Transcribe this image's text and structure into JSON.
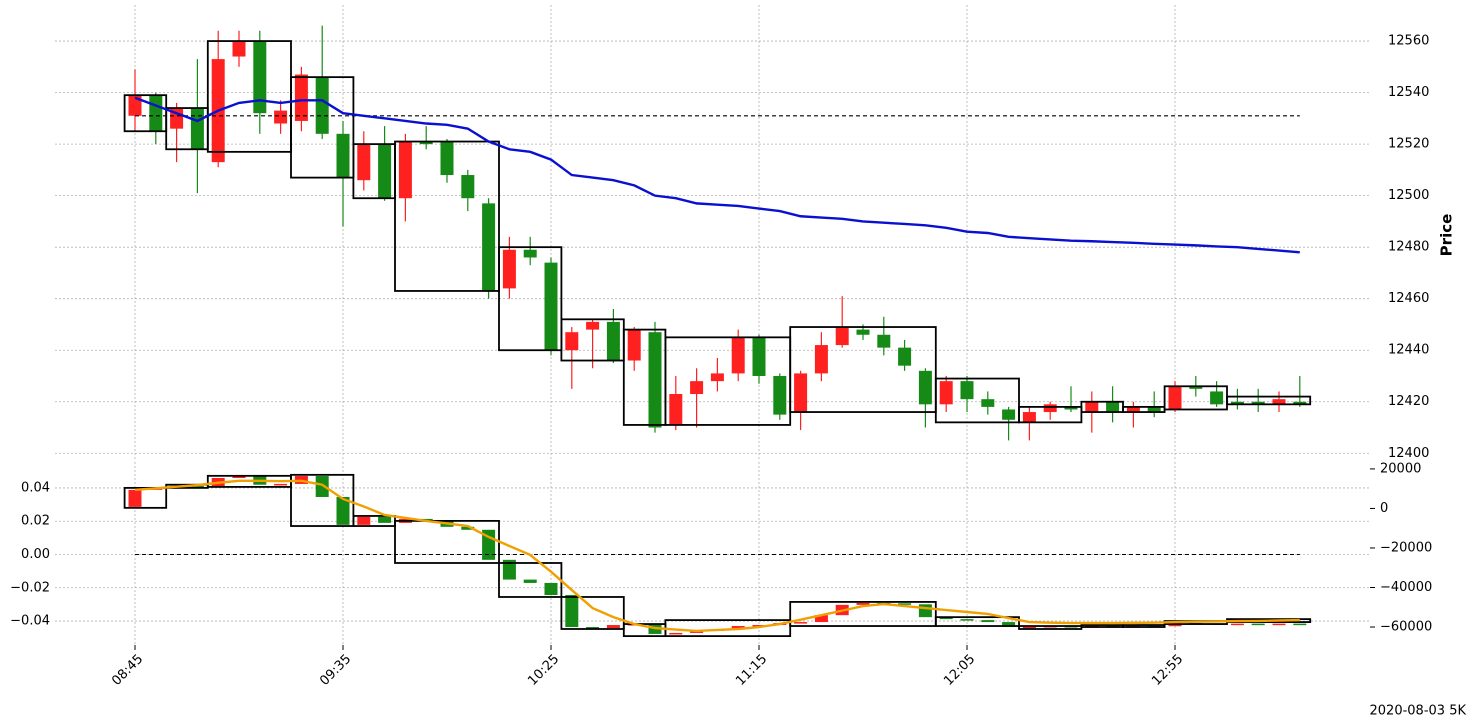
{
  "chart_data": [
    {
      "type": "candlestick",
      "ylabel": "Price",
      "grid": true,
      "ylim": [
        12397,
        12574
      ],
      "yticks": [
        12400,
        12420,
        12440,
        12460,
        12480,
        12500,
        12520,
        12540,
        12560
      ],
      "up_color": "#ff2020",
      "down_color": "#168a16",
      "open": [
        12531,
        12539,
        12526,
        12534,
        12513,
        12554,
        12560,
        12528,
        12529,
        12546,
        12524,
        12506,
        12520,
        12499,
        12521,
        12521,
        12508,
        12497,
        12464,
        12479,
        12474,
        12440,
        12448,
        12451,
        12436,
        12447,
        12411,
        12423,
        12428,
        12431,
        12445,
        12430,
        12416,
        12431,
        12442,
        12448,
        12446,
        12441,
        12432,
        12419,
        12428,
        12421,
        12417,
        12412,
        12416,
        12418,
        12416,
        12420,
        12416,
        12418,
        12417,
        12426,
        12424,
        12420,
        12420,
        12419,
        12420
      ],
      "high": [
        12549,
        12540,
        12536,
        12553,
        12564,
        12564,
        12564,
        12537,
        12550,
        12566,
        12529,
        12525,
        12527,
        12524,
        12527,
        12522,
        12510,
        12499,
        12484,
        12484,
        12476,
        12449,
        12452,
        12456,
        12449,
        12451,
        12430,
        12433,
        12437,
        12448,
        12446,
        12431,
        12432,
        12447,
        12461,
        12450,
        12453,
        12444,
        12433,
        12430,
        12430,
        12424,
        12418,
        12418,
        12420,
        12426,
        12424,
        12426,
        12420,
        12424,
        12428,
        12430,
        12428,
        12425,
        12425,
        12424,
        12430
      ],
      "low": [
        12525,
        12520,
        12513,
        12501,
        12511,
        12550,
        12524,
        12524,
        12525,
        12522,
        12488,
        12502,
        12498,
        12490,
        12518,
        12505,
        12494,
        12460,
        12460,
        12473,
        12438,
        12425,
        12433,
        12435,
        12432,
        12408,
        12409,
        12410,
        12424,
        12428,
        12427,
        12413,
        12409,
        12428,
        12441,
        12444,
        12438,
        12432,
        12410,
        12416,
        12416,
        12415,
        12405,
        12405,
        12413,
        12416,
        12408,
        12412,
        12410,
        12414,
        12416,
        12422,
        12418,
        12417,
        12416,
        12416,
        12418
      ],
      "close": [
        12539,
        12525,
        12534,
        12518,
        12553,
        12560,
        12532,
        12533,
        12547,
        12524,
        12507,
        12520,
        12499,
        12521,
        12520,
        12508,
        12499,
        12463,
        12479,
        12476,
        12440,
        12447,
        12451,
        12436,
        12448,
        12410,
        12423,
        12428,
        12431,
        12445,
        12430,
        12415,
        12431,
        12442,
        12449,
        12446,
        12441,
        12434,
        12419,
        12428,
        12421,
        12418,
        12413,
        12416,
        12419,
        12417,
        12420,
        12416,
        12418,
        12416,
        12426,
        12425,
        12419,
        12419,
        12419,
        12421,
        12419
      ],
      "series": [
        {
          "color": "#0a10d0",
          "values": [
            12538,
            12535,
            12532,
            12529,
            12533,
            12536,
            12537,
            12536,
            12537,
            12537,
            12532,
            12531,
            12530,
            12529,
            12528,
            12527.5,
            12526,
            12521,
            12518,
            12517,
            12514,
            12508,
            12507,
            12506,
            12504,
            12500,
            12499,
            12497,
            12496.5,
            12496,
            12495,
            12494,
            12492,
            12491.5,
            12491,
            12490,
            12489.5,
            12489,
            12488.5,
            12487.5,
            12486,
            12485.5,
            12484,
            12483.5,
            12483,
            12482.5,
            12482.3,
            12482,
            12481.7,
            12481.3,
            12481,
            12480.7,
            12480.3,
            12480,
            12479.3,
            12478.7,
            12478
          ]
        }
      ],
      "hline": {
        "value": 12531,
        "start": 0,
        "end": 56
      },
      "boxes": [
        {
          "start": 0,
          "end": 1,
          "high": 12539,
          "low": 12525
        },
        {
          "start": 2,
          "end": 3,
          "high": 12534,
          "low": 12518
        },
        {
          "start": 4,
          "end": 7,
          "high": 12560,
          "low": 12517
        },
        {
          "start": 8,
          "end": 10,
          "high": 12546,
          "low": 12507
        },
        {
          "start": 11,
          "end": 12,
          "high": 12520,
          "low": 12499
        },
        {
          "start": 13,
          "end": 17,
          "high": 12521,
          "low": 12463
        },
        {
          "start": 18,
          "end": 20,
          "high": 12480,
          "low": 12440
        },
        {
          "start": 21,
          "end": 23,
          "high": 12452,
          "low": 12436
        },
        {
          "start": 24,
          "end": 25,
          "high": 12448,
          "low": 12411
        },
        {
          "start": 26,
          "end": 31,
          "high": 12445,
          "low": 12411
        },
        {
          "start": 32,
          "end": 38,
          "high": 12449,
          "low": 12416
        },
        {
          "start": 39,
          "end": 42,
          "high": 12429,
          "low": 12412
        },
        {
          "start": 43,
          "end": 45,
          "high": 12418,
          "low": 12412
        },
        {
          "start": 46,
          "end": 47,
          "high": 12420,
          "low": 12416
        },
        {
          "start": 48,
          "end": 49,
          "high": 12418,
          "low": 12416
        },
        {
          "start": 50,
          "end": 52,
          "high": 12426,
          "low": 12417
        },
        {
          "start": 53,
          "end": 56,
          "high": 12422,
          "low": 12419
        }
      ]
    },
    {
      "type": "candlestick",
      "grid": true,
      "candle_axis": "y2",
      "categories": [
        "08:45",
        null,
        null,
        null,
        null,
        null,
        null,
        null,
        null,
        null,
        "09:35",
        null,
        null,
        null,
        null,
        null,
        null,
        null,
        null,
        null,
        "10:25",
        null,
        null,
        null,
        null,
        null,
        null,
        null,
        null,
        null,
        "11:15",
        null,
        null,
        null,
        null,
        null,
        null,
        null,
        null,
        null,
        "12:05",
        null,
        null,
        null,
        null,
        null,
        null,
        null,
        null,
        null,
        "12:55",
        null,
        null,
        null,
        null,
        null,
        null
      ],
      "ylim": [
        -0.0544,
        0.0556
      ],
      "yticks": [
        {
          "value": -0.04,
          "label": "−0.04"
        },
        {
          "value": -0.02,
          "label": "−0.02"
        },
        {
          "value": 0,
          "label": "0.00"
        },
        0.02,
        0.04
      ],
      "y2lim": [
        -69100,
        23500
      ],
      "y2ticks": [
        {
          "value": -60000,
          "label": "−60000"
        },
        {
          "value": -40000,
          "label": "−40000"
        },
        {
          "value": -20000,
          "label": "−20000"
        },
        0,
        20000
      ],
      "up_color": "#ff2020",
      "down_color": "#168a16",
      "open": [
        800,
        9400,
        10400,
        11400,
        11000,
        15400,
        16400,
        12000,
        12400,
        16400,
        5800,
        -8300,
        -4300,
        -7300,
        -5300,
        -6300,
        -9300,
        -10800,
        -26000,
        -36000,
        -37700,
        -43800,
        -60000,
        -60500,
        -59000,
        -58500,
        -63500,
        -63000,
        -62000,
        -61000,
        -59500,
        -59000,
        -58000,
        -57500,
        -54000,
        -48800,
        -47800,
        -48000,
        -48500,
        -55000,
        -56000,
        -56500,
        -57500,
        -60000,
        -59800,
        -59500,
        -59800,
        -59500,
        -59700,
        -59500,
        -59600,
        -58000,
        -58200,
        -58500,
        -58300,
        -58500,
        -58300
      ],
      "close": [
        9400,
        10400,
        11400,
        11000,
        15400,
        16400,
        12000,
        12400,
        16400,
        5800,
        -8300,
        -4300,
        -7300,
        -5300,
        -6300,
        -9300,
        -10800,
        -26000,
        -36000,
        -37700,
        -43800,
        -60000,
        -60500,
        -59000,
        -58500,
        -63500,
        -63000,
        -62000,
        -61000,
        -59500,
        -59000,
        -58000,
        -57500,
        -54000,
        -48800,
        -47800,
        -48000,
        -48500,
        -55000,
        -56000,
        -56500,
        -57500,
        -60000,
        -59800,
        -59500,
        -59800,
        -59500,
        -59700,
        -59500,
        -59600,
        -58000,
        -58200,
        -58500,
        -58300,
        -58500,
        -58300,
        -58500
      ],
      "series": [
        {
          "color": "#f0a000",
          "axis": "y2",
          "values": [
            9400,
            10200,
            11000,
            11800,
            13000,
            14000,
            14000,
            13800,
            14000,
            12000,
            4800,
            1000,
            -3300,
            -4800,
            -6300,
            -7600,
            -8900,
            -14400,
            -19000,
            -23500,
            -32000,
            -41300,
            -50400,
            -55000,
            -58500,
            -60500,
            -61300,
            -62000,
            -61500,
            -61000,
            -60000,
            -58500,
            -56300,
            -54000,
            -51700,
            -49400,
            -48400,
            -49400,
            -50400,
            -51400,
            -52400,
            -53400,
            -55500,
            -57500,
            -57800,
            -58000,
            -58000,
            -58000,
            -57900,
            -57800,
            -57500,
            -57300,
            -57200,
            -57000,
            -56900,
            -56700,
            -56500
          ]
        }
      ],
      "hline": {
        "value": 0,
        "start": 0,
        "end": 56
      },
      "boxes": [
        {
          "start": 0,
          "end": 1,
          "high": 10400,
          "low": 300
        },
        {
          "start": 2,
          "end": 3,
          "high": 12000,
          "low": 10400
        },
        {
          "start": 4,
          "end": 7,
          "high": 16500,
          "low": 10900
        },
        {
          "start": 8,
          "end": 10,
          "high": 17000,
          "low": -8900
        },
        {
          "start": 11,
          "end": 12,
          "high": -3800,
          "low": -8900
        },
        {
          "start": 13,
          "end": 17,
          "high": -6300,
          "low": -27600
        },
        {
          "start": 18,
          "end": 20,
          "high": -27600,
          "low": -44800
        },
        {
          "start": 21,
          "end": 23,
          "high": -44800,
          "low": -61000
        },
        {
          "start": 24,
          "end": 25,
          "high": -58500,
          "low": -64600
        },
        {
          "start": 26,
          "end": 31,
          "high": -56500,
          "low": -64600
        },
        {
          "start": 32,
          "end": 38,
          "high": -47300,
          "low": -59500
        },
        {
          "start": 39,
          "end": 42,
          "high": -55000,
          "low": -59500
        },
        {
          "start": 43,
          "end": 45,
          "high": -59500,
          "low": -61000
        },
        {
          "start": 46,
          "end": 47,
          "high": -59000,
          "low": -60000
        },
        {
          "start": 48,
          "end": 49,
          "high": -59000,
          "low": -60000
        },
        {
          "start": 50,
          "end": 52,
          "high": -57000,
          "low": -58500
        },
        {
          "start": 53,
          "end": 56,
          "high": -56000,
          "low": -57500
        }
      ]
    }
  ],
  "caption": "2020-08-03 5K"
}
